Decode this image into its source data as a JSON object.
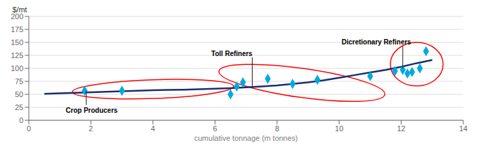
{
  "chart_data": {
    "type": "line",
    "xlabel": "cumulative tonnage (m tonnes)",
    "ylabel": "$/mt",
    "xlim": [
      0,
      14
    ],
    "ylim": [
      0,
      200
    ],
    "xticks": [
      0,
      2,
      4,
      6,
      8,
      10,
      12,
      14
    ],
    "yticks": [
      0,
      25,
      50,
      75,
      100,
      125,
      150,
      175,
      200
    ],
    "grid": "y",
    "series": [
      {
        "type": "line",
        "color": "#1a2e6e",
        "x": [
          0.5,
          1.0,
          1.5,
          2.0,
          2.5,
          3.0,
          3.5,
          4.0,
          4.5,
          5.0,
          5.5,
          6.0,
          6.5,
          7.0,
          7.5,
          8.0,
          8.5,
          9.0,
          9.5,
          10.0,
          10.5,
          11.0,
          11.5,
          12.0,
          12.5,
          13.0
        ],
        "values": [
          51,
          52,
          53,
          54,
          55,
          56,
          57,
          58,
          58.5,
          59,
          60,
          61,
          62,
          63.5,
          65,
          67,
          70,
          73,
          77,
          82,
          87,
          92,
          97,
          103,
          110,
          116
        ]
      },
      {
        "type": "scatter",
        "color": "#00aadd",
        "marker": "diamond",
        "x": [
          1.8,
          3.0,
          6.5,
          6.7,
          6.9,
          7.7,
          8.5,
          9.3,
          11.0,
          11.8,
          12.05,
          12.2,
          12.35,
          12.6,
          12.8
        ],
        "values": [
          57,
          57,
          50,
          65,
          73,
          80,
          70,
          78,
          85,
          95,
          97,
          90,
          93,
          100,
          133
        ]
      }
    ],
    "ellipses": [
      {
        "cx": 4.0,
        "cy": 60,
        "rx": 2.6,
        "ry": 18,
        "angle": 2,
        "color": "red"
      },
      {
        "cx": 8.8,
        "cy": 72,
        "rx": 2.7,
        "ry": 28,
        "angle": -8,
        "color": "red"
      },
      {
        "cx": 12.5,
        "cy": 108,
        "rx": 0.85,
        "ry": 42,
        "angle": 0,
        "color": "red"
      }
    ],
    "annotations": [
      {
        "text": "Crop Producers",
        "xy": [
          1.85,
          56
        ]
      },
      {
        "text": "Toll Refiners",
        "xy": [
          7.2,
          66
        ]
      },
      {
        "text": "Dicretionary Refiners",
        "xy": [
          12.05,
          100
        ]
      }
    ]
  }
}
